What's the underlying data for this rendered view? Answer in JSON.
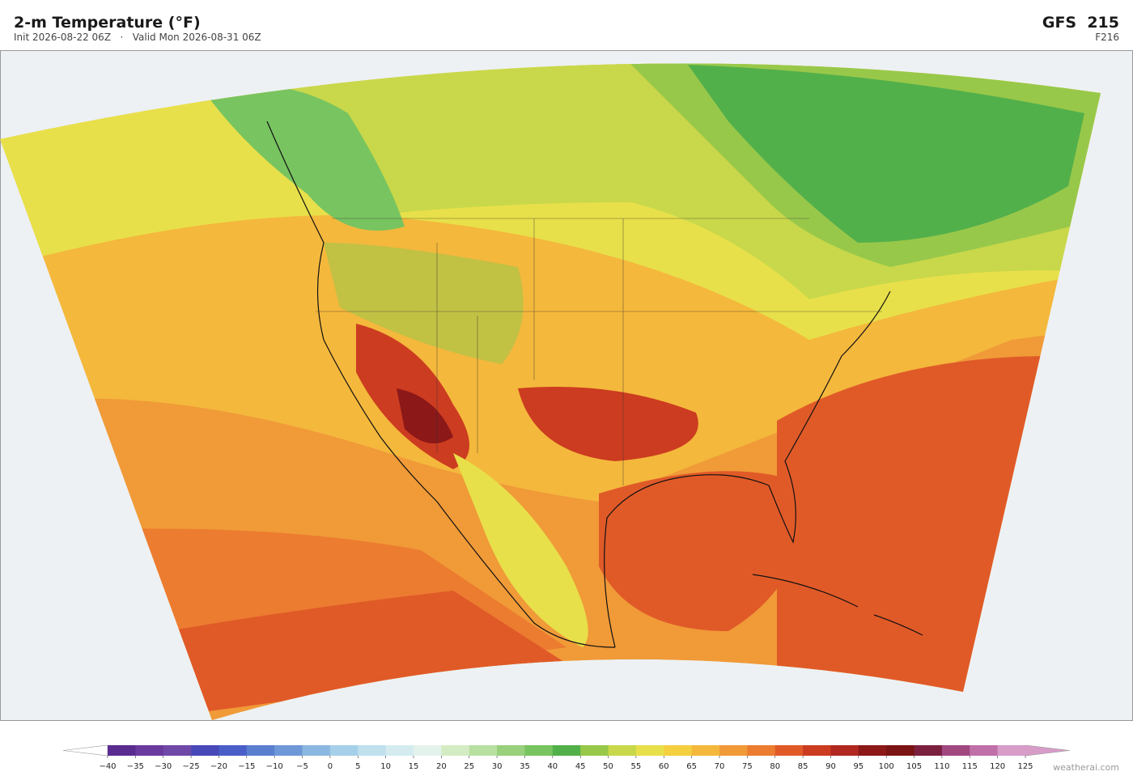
{
  "header": {
    "title": "2-m Temperature  (°F)",
    "subtitle": "Init 2026-08-22 06Z   ·   Valid Mon 2026-08-31 06Z",
    "model": "GFS  215",
    "forecast_hour": "F216"
  },
  "colorbar": {
    "ticks": [
      "−40",
      "−35",
      "−30",
      "−25",
      "−20",
      "−15",
      "−10",
      "−5",
      "0",
      "5",
      "10",
      "15",
      "20",
      "25",
      "30",
      "35",
      "40",
      "45",
      "50",
      "55",
      "60",
      "65",
      "70",
      "75",
      "80",
      "85",
      "90",
      "95",
      "100",
      "105",
      "110",
      "115",
      "120",
      "125"
    ],
    "colors": [
      "#5b2c8f",
      "#6a3a9e",
      "#7048a8",
      "#4848b8",
      "#4a5ec8",
      "#5a7fd0",
      "#6e98d8",
      "#8ab8e0",
      "#a6d0ea",
      "#c0e0ee",
      "#d4ecf0",
      "#e4f2ec",
      "#d4ecc4",
      "#b8e0a0",
      "#98d07c",
      "#78c460",
      "#52b04a",
      "#98c84a",
      "#c8d84a",
      "#e8e04a",
      "#f4d040",
      "#f4b83c",
      "#f09a38",
      "#ec7c30",
      "#e05a28",
      "#cc3c20",
      "#b02820",
      "#8c1818",
      "#7a1414",
      "#7c2040",
      "#a04880",
      "#c070a8",
      "#d89cc8"
    ],
    "under_color": "#ffffff",
    "over_color": "#d89cc8"
  },
  "watermark": "weatherai.com"
}
